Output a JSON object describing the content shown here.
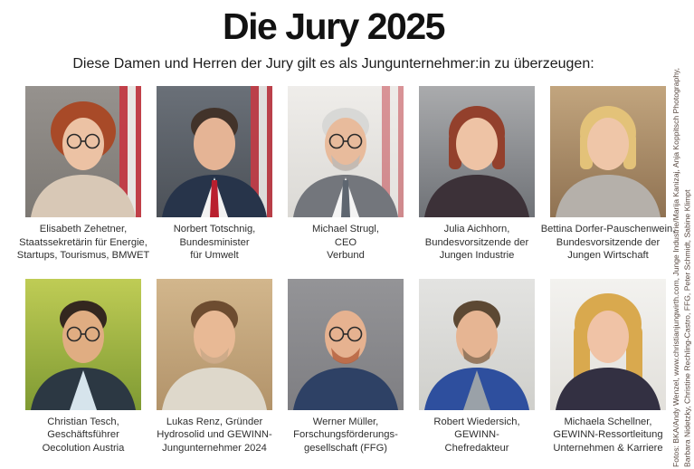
{
  "header": {
    "title": "Die Jury 2025",
    "subtitle": "Diese Damen und Herren der Jury gilt es als Jungunternehmer:in zu überzeugen:"
  },
  "credits": {
    "line1": "Fotos: BKA/Andy Wenzel, www.christianjungwirth.com, Junge Industrie/Marija Kanizaj, Anja Koppitsch Photography,",
    "line2": "Barbara Nidetzky, Christine Rechling-Castro, FFG, Peter Schmidt, Sabine Klimpt"
  },
  "colors": {
    "flag_red": "#c43c46",
    "flag_white": "#edebe8",
    "caption_text": "#2e2e2e",
    "credits_text": "#584840",
    "title_text": "#121212"
  },
  "people": [
    {
      "caption_lines": [
        "Elisabeth Zehetner,",
        "Staatssekretärin für Energie,",
        "Startups, Tourismus, BMWET"
      ],
      "photo": {
        "bg1": "#96928e",
        "bg2": "#7c7873",
        "flag": 0.95,
        "hair": "#a84a28",
        "hairStyle": "curly",
        "skin": "#ecc2a4",
        "top": "#d8c8b6",
        "top2": "",
        "tie": "",
        "glasses": true,
        "beard": ""
      }
    },
    {
      "caption_lines": [
        "Norbert Totschnig,",
        "Bundesminister",
        "für Umwelt"
      ],
      "photo": {
        "bg1": "#6a7078",
        "bg2": "#4c5158",
        "flag": 0.9,
        "hair": "#42332a",
        "hairStyle": "short",
        "skin": "#e5b495",
        "top": "#27344a",
        "top2": "#f2f2f2",
        "tie": "#b91f2e",
        "glasses": false,
        "beard": ""
      }
    },
    {
      "caption_lines": [
        "Michael Strugl,",
        "CEO",
        "Verbund"
      ],
      "photo": {
        "bg1": "#efedea",
        "bg2": "#dbd9d5",
        "flag": 0.5,
        "hair": "#d8d8d6",
        "hairStyle": "short",
        "skin": "#e8bb9c",
        "top": "#73767c",
        "top2": "#f4f4f4",
        "tie": "#5e6670",
        "glasses": true,
        "beard": "#bdbab6"
      }
    },
    {
      "caption_lines": [
        "Julia Aichhorn,",
        "Bundesvorsitzende der",
        "Jungen Industrie"
      ],
      "photo": {
        "bg1": "#aaabad",
        "bg2": "#6f7277",
        "flag": 0,
        "hair": "#93402c",
        "hairStyle": "bob",
        "skin": "#eec3a5",
        "top": "#3c3138",
        "top2": "",
        "tie": "",
        "glasses": false,
        "beard": ""
      }
    },
    {
      "caption_lines": [
        "Bettina Dorfer-Pauschenwein,",
        "Bundesvorsitzende der",
        "Jungen Wirtschaft"
      ],
      "photo": {
        "bg1": "#c2a57e",
        "bg2": "#8f7252",
        "flag": 0,
        "hair": "#e3c279",
        "hairStyle": "bob",
        "skin": "#efc6a8",
        "top": "#b5b0aa",
        "top2": "",
        "tie": "",
        "glasses": false,
        "beard": ""
      }
    },
    {
      "caption_lines": [
        "Christian Tesch,",
        "Geschäftsführer",
        "Oecolution Austria"
      ],
      "photo": {
        "bg1": "#bfcc55",
        "bg2": "#7f9a33",
        "flag": 0,
        "hair": "#33271f",
        "hairStyle": "short",
        "skin": "#e0ad82",
        "top": "#2c3843",
        "top2": "#d6e4ec",
        "tie": "",
        "glasses": true,
        "beard": ""
      }
    },
    {
      "caption_lines": [
        "Lukas Renz, Gründer",
        "Hydrosolid und GEWINN-",
        "Jungunternehmer 2024"
      ],
      "photo": {
        "bg1": "#d2b68c",
        "bg2": "#b2936a",
        "flag": 0,
        "hair": "#6d4c30",
        "hairStyle": "short",
        "skin": "#e8b995",
        "top": "#ded8cb",
        "top2": "",
        "tie": "",
        "glasses": false,
        "beard": "#c9a887"
      }
    },
    {
      "caption_lines": [
        "Werner Müller,",
        "Forschungsförderungs-",
        "gesellschaft (FFG)"
      ],
      "photo": {
        "bg1": "#949497",
        "bg2": "#7e7e82",
        "flag": 0,
        "hair": "",
        "hairStyle": "bald",
        "skin": "#e6b290",
        "top": "#2e4165",
        "top2": "",
        "tie": "",
        "glasses": true,
        "beard": "#b5623f"
      }
    },
    {
      "caption_lines": [
        "Robert Wiedersich,",
        "GEWINN-",
        "Chefredakteur"
      ],
      "photo": {
        "bg1": "#e3e3e1",
        "bg2": "#cfcfcb",
        "flag": 0,
        "hair": "#5c4833",
        "hairStyle": "short",
        "skin": "#e6b593",
        "top": "#2e4f9e",
        "top2": "#9aa1a8",
        "tie": "",
        "glasses": false,
        "beard": "#8a7057"
      }
    },
    {
      "caption_lines": [
        "Michaela Schellner,",
        "GEWINN-Ressortleitung",
        "Unternehmen & Karriere"
      ],
      "photo": {
        "bg1": "#f3f2ef",
        "bg2": "#e2e0db",
        "flag": 0,
        "hair": "#d9a94e",
        "hairStyle": "long",
        "skin": "#f0c3a6",
        "top": "#333042",
        "top2": "",
        "tie": "",
        "glasses": false,
        "beard": ""
      }
    }
  ]
}
